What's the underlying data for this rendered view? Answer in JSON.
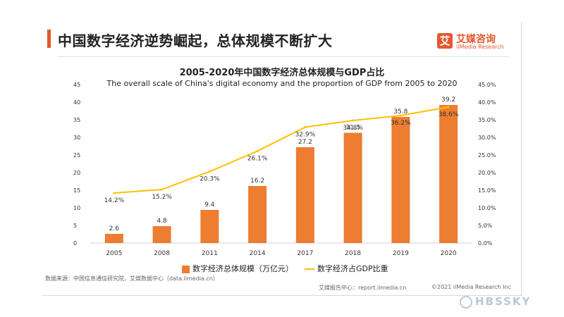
{
  "headline": "中国数字经济逆势崛起，总体规模不断扩大",
  "logo": {
    "icon": "艾",
    "name": "艾媒咨询",
    "sub": "iiMedia Research"
  },
  "chart_data": {
    "type": "bar+line",
    "title": "2005-2020年中国数字经济总体规模与GDP占比",
    "subtitle": "The overall scale of China's digital economy and the proportion of GDP from 2005 to 2020",
    "categories": [
      "2005",
      "2008",
      "2011",
      "2014",
      "2017",
      "2018",
      "2019",
      "2020"
    ],
    "series": [
      {
        "name": "数字经济总体规模（万亿元）",
        "type": "bar",
        "axis": "left",
        "color": "#ed7d31",
        "values": [
          2.6,
          4.8,
          9.4,
          16.2,
          27.2,
          31.3,
          35.8,
          39.2
        ],
        "labels": [
          "2.6",
          "4.8",
          "9.4",
          "16.2",
          "27.2",
          "31.3",
          "35.8",
          "39.2"
        ]
      },
      {
        "name": "数字经济占GDP比重",
        "type": "line",
        "axis": "right",
        "color": "#ffc000",
        "values": [
          14.2,
          15.2,
          20.3,
          26.1,
          32.9,
          34.8,
          36.2,
          38.6
        ],
        "labels": [
          "14.2%",
          "15.2%",
          "20.3%",
          "26.1%",
          "32.9%",
          "34.8%",
          "36.2%",
          "38.6%"
        ]
      }
    ],
    "y_left": {
      "min": 0,
      "max": 45,
      "step": 5,
      "ticks": [
        "0",
        "5",
        "10",
        "15",
        "20",
        "25",
        "30",
        "35",
        "40",
        "45"
      ]
    },
    "y_right": {
      "min": 0,
      "max": 45,
      "step": 5,
      "ticks": [
        "0.0%",
        "5.0%",
        "10.0%",
        "15.0%",
        "20.0%",
        "25.0%",
        "30.0%",
        "35.0%",
        "40.0%",
        "45.0%"
      ]
    },
    "grid": false,
    "legend": "bottom"
  },
  "footer": {
    "source": "数据来源：中国信息通信研究院，艾媒数据中心（data.iimedia.cn）",
    "report": "艾媒报告中心：report.iimedia.cn",
    "copyright": "©2021  iiMedia Research  Inc"
  },
  "watermark": "HBSSKY"
}
